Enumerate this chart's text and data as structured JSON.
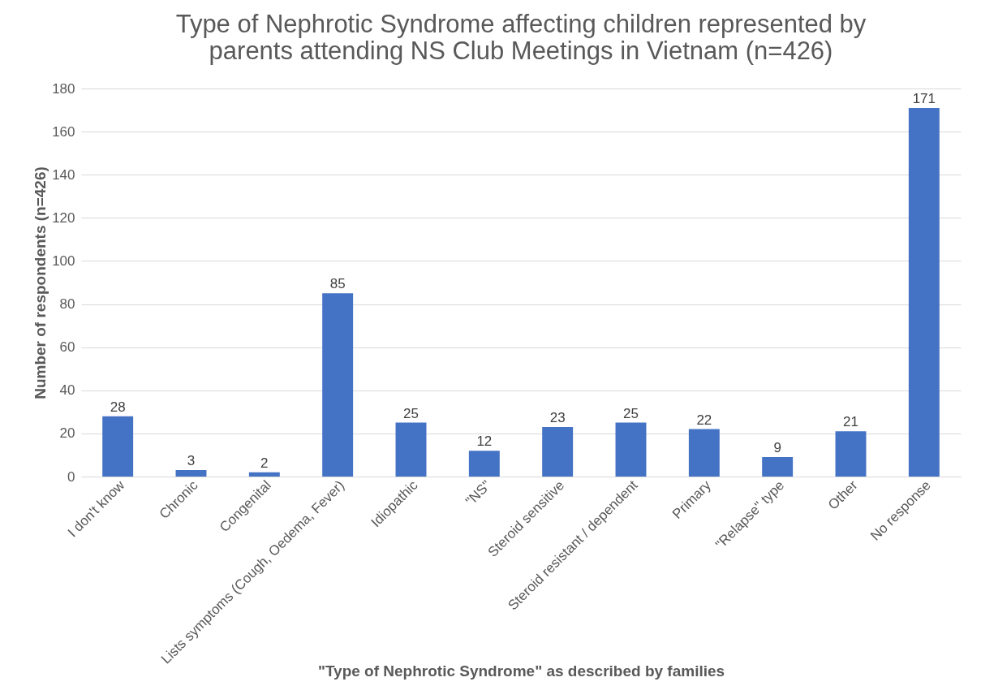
{
  "chart_data": {
    "type": "bar",
    "title": "Type of Nephrotic Syndrome affecting children represented by parents attending NS Club Meetings in Vietnam (n=426)",
    "xlabel": "\"Type of Nephrotic Syndrome\" as described by families",
    "ylabel": "Number of respondents (n=426)",
    "categories": [
      "I don't know",
      "Chronic",
      "Congenital",
      "Lists symptoms (Cough, Oedema, Fever)",
      "Idiopathic",
      "\"NS\"",
      "Steroid sensitive",
      "Steroid resistant / dependent",
      "Primary",
      "\"Relapse\" type",
      "Other",
      "No response"
    ],
    "values": [
      28,
      3,
      2,
      85,
      25,
      12,
      23,
      25,
      22,
      9,
      21,
      171
    ],
    "color": "#4472c4",
    "ylim": [
      0,
      180
    ],
    "yticks": [
      0,
      20,
      40,
      60,
      80,
      100,
      120,
      140,
      160,
      180
    ],
    "grid": "y",
    "data_labels": true
  }
}
